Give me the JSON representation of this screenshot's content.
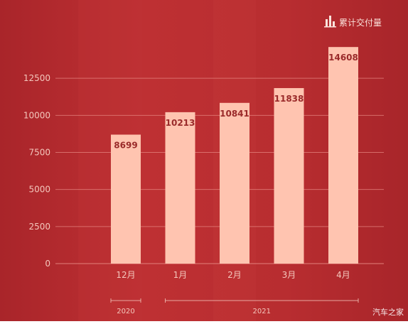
{
  "chart_data": {
    "type": "bar",
    "title": "",
    "legend": {
      "label": "累计交付量",
      "icon": "bar-chart-icon",
      "placement": "top-right"
    },
    "categories": [
      "12月",
      "1月",
      "2月",
      "3月",
      "4月"
    ],
    "values": [
      8699,
      10213,
      10841,
      11838,
      14608
    ],
    "data_labels": [
      "8699",
      "10213",
      "10841",
      "11838",
      "14608"
    ],
    "y_ticks": [
      0,
      2500,
      5000,
      7500,
      10000,
      12500
    ],
    "y_tick_labels": [
      "0",
      "2500",
      "5000",
      "7500",
      "10000",
      "12500"
    ],
    "ylim": [
      0,
      15000
    ],
    "year_groups": [
      {
        "label": "2020",
        "categories": [
          "12月"
        ]
      },
      {
        "label": "2021",
        "categories": [
          "1月",
          "2月",
          "3月",
          "4月"
        ]
      }
    ],
    "grid": true,
    "colors": {
      "background": "#b72b2e",
      "bar": "#ffc4b0",
      "label": "#9a2a2a",
      "grid": "#e88a84",
      "text": "#f4c7bc"
    }
  },
  "watermark": "汽车之家"
}
